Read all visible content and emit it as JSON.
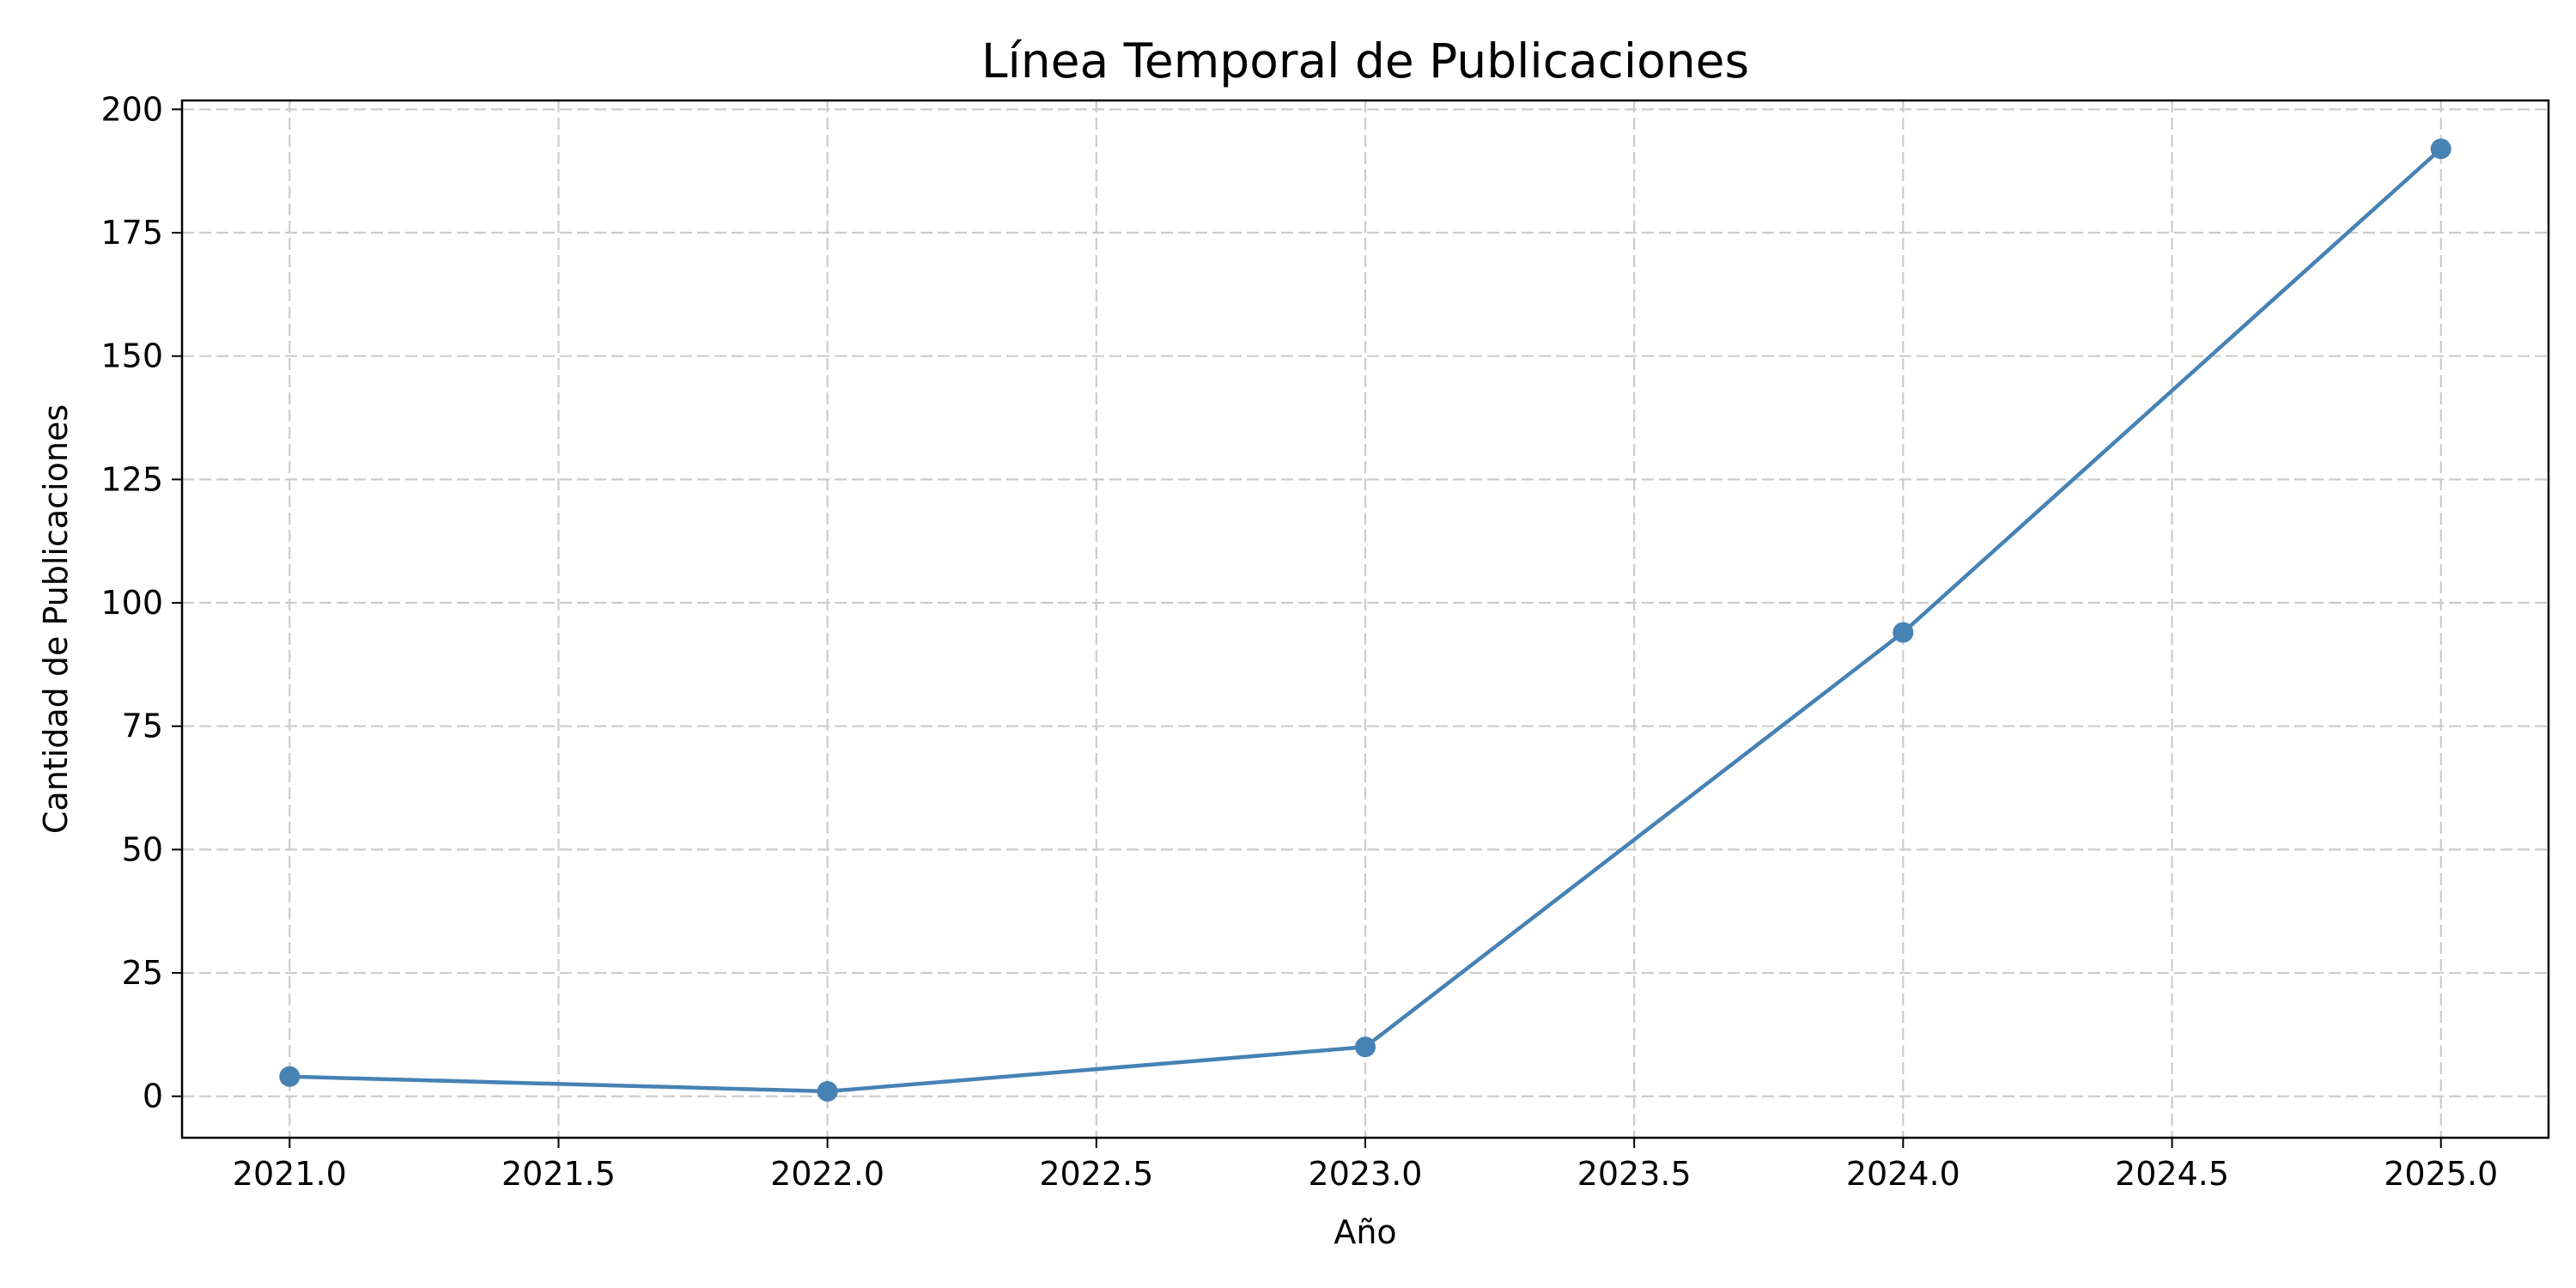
{
  "chart_data": {
    "type": "line",
    "title": "Línea Temporal de Publicaciones",
    "xlabel": "Año",
    "ylabel": "Cantidad de Publicaciones",
    "xlim": [
      2020.8,
      2025.2
    ],
    "ylim": [
      -8.4,
      201.8
    ],
    "x_ticks": [
      2021.0,
      2021.5,
      2022.0,
      2022.5,
      2023.0,
      2023.5,
      2024.0,
      2024.5,
      2025.0
    ],
    "x_tick_labels": [
      "2021.0",
      "2021.5",
      "2022.0",
      "2022.5",
      "2023.0",
      "2023.5",
      "2024.0",
      "2024.5",
      "2025.0"
    ],
    "y_ticks": [
      0,
      25,
      50,
      75,
      100,
      125,
      150,
      175,
      200
    ],
    "y_tick_labels": [
      "0",
      "25",
      "50",
      "75",
      "100",
      "125",
      "150",
      "175",
      "200"
    ],
    "grid": true,
    "series": [
      {
        "color": "#4682b4",
        "marker": "circle",
        "x": [
          2021,
          2022,
          2023,
          2024,
          2025
        ],
        "y": [
          4,
          1,
          10,
          94,
          192
        ]
      }
    ]
  }
}
